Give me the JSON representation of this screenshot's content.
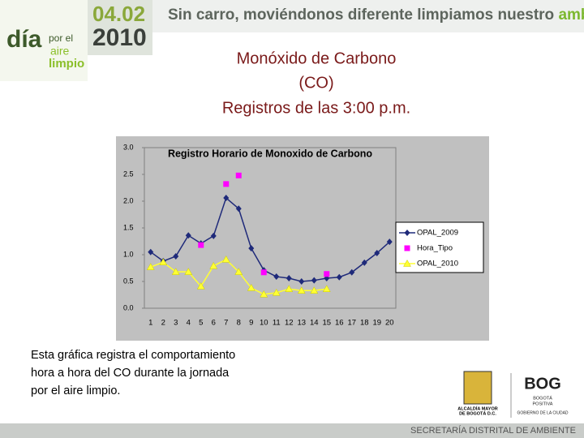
{
  "header": {
    "date": "04.02",
    "year": "2010",
    "slogan": "Sin carro, moviéndonos diferente limpiamos nuestro",
    "slogan_highlight": "ambiente",
    "logo_line1": "día",
    "logo_line2": "por el",
    "logo_line3": "aire",
    "logo_line4": "limpio"
  },
  "slide_title": [
    "Monóxido de Carbono",
    "(CO)",
    "Registros de las 3:00 p.m."
  ],
  "description": [
    "Esta gráfica registra el comportamiento",
    "hora a hora del CO durante la jornada",
    "por el aire limpio."
  ],
  "footer": {
    "alcaldia": [
      "ALCALDÍA MAYOR",
      "DE BOGOTÁ D.C."
    ],
    "bog": "BOG",
    "bog_sub": [
      "BOGOTÁ",
      "POSITIVA"
    ],
    "gobierno": "GOBIERNO DE LA CIUDAD",
    "secretaria": "SECRETARÍA DISTRITAL DE AMBIENTE"
  },
  "chart_data": {
    "type": "line",
    "title": "Registro Horario de Monoxido de Carbono",
    "categories": [
      "1",
      "2",
      "3",
      "4",
      "5",
      "6",
      "7",
      "8",
      "9",
      "10",
      "11",
      "12",
      "13",
      "14",
      "15",
      "16",
      "17",
      "18",
      "19",
      "20"
    ],
    "series": [
      {
        "name": "OPAL_2009",
        "color": "#1f2a7a",
        "marker": "diamond",
        "line": true,
        "values": [
          1.05,
          0.88,
          0.97,
          1.36,
          1.21,
          1.35,
          2.06,
          1.86,
          1.12,
          0.71,
          0.59,
          0.56,
          0.5,
          0.52,
          0.56,
          0.58,
          0.67,
          0.85,
          1.03,
          1.24
        ]
      },
      {
        "name": "Hora_Tipo",
        "color": "#ff00ff",
        "marker": "square",
        "line": false,
        "values": [
          null,
          null,
          null,
          null,
          1.18,
          null,
          2.32,
          2.48,
          null,
          0.67,
          null,
          null,
          null,
          null,
          0.64,
          null,
          null,
          null,
          null,
          null
        ]
      },
      {
        "name": "OPAL_2010",
        "color": "#ffff33",
        "marker": "triangle",
        "line": true,
        "values": [
          0.77,
          0.86,
          0.68,
          0.68,
          0.41,
          0.79,
          0.91,
          0.68,
          0.38,
          0.26,
          0.29,
          0.36,
          0.33,
          0.33,
          0.36,
          null,
          null,
          null,
          null,
          null
        ]
      }
    ],
    "ylim": [
      0,
      3
    ],
    "yticks": [
      {
        "value": 0,
        "label": "0.0"
      },
      {
        "value": 0.5,
        "label": "0.5"
      },
      {
        "value": 1,
        "label": "1.0"
      },
      {
        "value": 1.5,
        "label": "1.5"
      },
      {
        "value": 2,
        "label": "2.0"
      },
      {
        "value": 2.5,
        "label": "2.5"
      },
      {
        "value": 3,
        "label": "3.0"
      }
    ],
    "grid": false,
    "legend": "right"
  }
}
